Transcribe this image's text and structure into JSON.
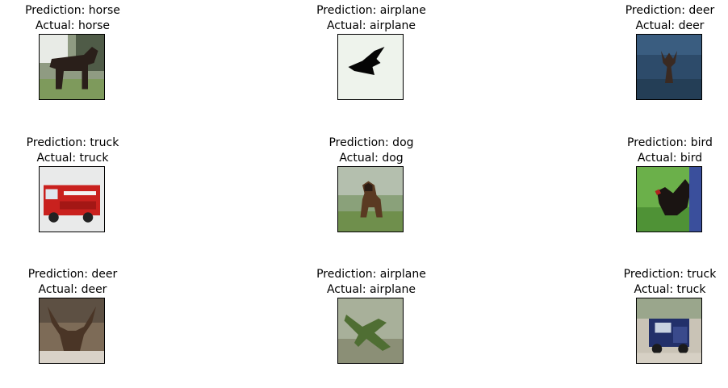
{
  "figure": {
    "panels": [
      {
        "prediction": "Prediction: horse",
        "actual": "Actual: horse",
        "image": "horse-photo"
      },
      {
        "prediction": "Prediction: airplane",
        "actual": "Actual: airplane",
        "image": "airplane-silhouette-photo"
      },
      {
        "prediction": "Prediction: deer",
        "actual": "Actual: deer",
        "image": "deer-photo"
      },
      {
        "prediction": "Prediction: truck",
        "actual": "Actual: truck",
        "image": "fire-truck-photo"
      },
      {
        "prediction": "Prediction: dog",
        "actual": "Actual: dog",
        "image": "dog-photo"
      },
      {
        "prediction": "Prediction: bird",
        "actual": "Actual: bird",
        "image": "bird-photo"
      },
      {
        "prediction": "Prediction: deer",
        "actual": "Actual: deer",
        "image": "deer-antlers-photo"
      },
      {
        "prediction": "Prediction: airplane",
        "actual": "Actual: airplane",
        "image": "green-airplane-photo"
      },
      {
        "prediction": "Prediction: truck",
        "actual": "Actual: truck",
        "image": "blue-truck-photo"
      }
    ]
  }
}
